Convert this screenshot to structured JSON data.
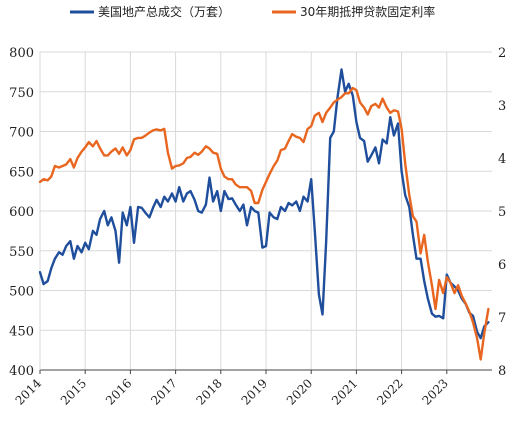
{
  "chart_data": {
    "type": "line",
    "title": "",
    "xlabel": "",
    "ylabel": "",
    "xlim": [
      2014,
      2024
    ],
    "ylim": [
      400,
      800
    ],
    "y2lim": [
      2,
      8
    ],
    "y2_inverted": true,
    "x_ticks": [
      "2014",
      "2015",
      "2016",
      "2017",
      "2018",
      "2019",
      "2020",
      "2021",
      "2022",
      "2023"
    ],
    "y_ticks": [
      "400",
      "450",
      "500",
      "550",
      "600",
      "650",
      "700",
      "750",
      "800"
    ],
    "y2_ticks": [
      "2",
      "3",
      "4",
      "5",
      "6",
      "7",
      "8"
    ],
    "grid": true,
    "legend_position": "top",
    "series": [
      {
        "name": "美国地产总成交（万套）",
        "axis": "left",
        "color": "#1f4e9c",
        "x": [
          2014.0,
          2014.08,
          2014.17,
          2014.25,
          2014.33,
          2014.42,
          2014.5,
          2014.58,
          2014.67,
          2014.75,
          2014.83,
          2014.92,
          2015.0,
          2015.08,
          2015.17,
          2015.25,
          2015.33,
          2015.42,
          2015.5,
          2015.58,
          2015.67,
          2015.75,
          2015.83,
          2015.92,
          2016.0,
          2016.08,
          2016.17,
          2016.25,
          2016.33,
          2016.42,
          2016.5,
          2016.58,
          2016.67,
          2016.75,
          2016.83,
          2016.92,
          2017.0,
          2017.08,
          2017.17,
          2017.25,
          2017.33,
          2017.42,
          2017.5,
          2017.58,
          2017.67,
          2017.75,
          2017.83,
          2017.92,
          2018.0,
          2018.08,
          2018.17,
          2018.25,
          2018.33,
          2018.42,
          2018.5,
          2018.58,
          2018.67,
          2018.75,
          2018.83,
          2018.92,
          2019.0,
          2019.08,
          2019.17,
          2019.25,
          2019.33,
          2019.42,
          2019.5,
          2019.58,
          2019.67,
          2019.75,
          2019.83,
          2019.92,
          2020.0,
          2020.08,
          2020.17,
          2020.25,
          2020.33,
          2020.42,
          2020.5,
          2020.58,
          2020.67,
          2020.75,
          2020.83,
          2020.92,
          2021.0,
          2021.08,
          2021.17,
          2021.25,
          2021.33,
          2021.42,
          2021.5,
          2021.58,
          2021.67,
          2021.75,
          2021.83,
          2021.92,
          2022.0,
          2022.08,
          2022.17,
          2022.25,
          2022.33,
          2022.42,
          2022.5,
          2022.58,
          2022.67,
          2022.75,
          2022.83,
          2022.92,
          2023.0,
          2023.08,
          2023.17,
          2023.25,
          2023.33,
          2023.42,
          2023.5,
          2023.58,
          2023.67,
          2023.75,
          2023.83,
          2023.92
        ],
        "values": [
          523,
          508,
          512,
          528,
          540,
          548,
          545,
          556,
          562,
          540,
          556,
          548,
          560,
          552,
          575,
          570,
          590,
          600,
          582,
          592,
          575,
          535,
          598,
          582,
          605,
          560,
          605,
          604,
          598,
          592,
          604,
          614,
          605,
          618,
          612,
          622,
          612,
          630,
          612,
          622,
          625,
          614,
          600,
          598,
          608,
          642,
          612,
          625,
          600,
          625,
          615,
          616,
          608,
          600,
          608,
          582,
          605,
          600,
          598,
          554,
          556,
          598,
          592,
          590,
          605,
          600,
          610,
          607,
          612,
          600,
          618,
          612,
          640,
          575,
          495,
          470,
          560,
          692,
          700,
          742,
          778,
          750,
          760,
          745,
          712,
          692,
          688,
          662,
          670,
          680,
          660,
          690,
          685,
          718,
          695,
          710,
          650,
          620,
          605,
          570,
          540,
          540,
          512,
          490,
          471,
          467,
          468,
          465,
          520,
          510,
          505,
          500,
          490,
          483,
          472,
          468,
          448,
          440,
          455,
          460
        ]
      },
      {
        "name": "30年期抵押贷款固定利率",
        "axis": "right",
        "color": "#e8661f",
        "x": [
          2014.0,
          2014.08,
          2014.17,
          2014.25,
          2014.33,
          2014.42,
          2014.5,
          2014.58,
          2014.67,
          2014.75,
          2014.83,
          2014.92,
          2015.0,
          2015.08,
          2015.17,
          2015.25,
          2015.33,
          2015.42,
          2015.5,
          2015.58,
          2015.67,
          2015.75,
          2015.83,
          2015.92,
          2016.0,
          2016.08,
          2016.17,
          2016.25,
          2016.33,
          2016.42,
          2016.5,
          2016.58,
          2016.67,
          2016.75,
          2016.83,
          2016.92,
          2017.0,
          2017.08,
          2017.17,
          2017.25,
          2017.33,
          2017.42,
          2017.5,
          2017.58,
          2017.67,
          2017.75,
          2017.83,
          2017.92,
          2018.0,
          2018.08,
          2018.17,
          2018.25,
          2018.33,
          2018.42,
          2018.5,
          2018.58,
          2018.67,
          2018.75,
          2018.83,
          2018.92,
          2019.0,
          2019.08,
          2019.17,
          2019.25,
          2019.33,
          2019.42,
          2019.5,
          2019.58,
          2019.67,
          2019.75,
          2019.83,
          2019.92,
          2020.0,
          2020.08,
          2020.17,
          2020.25,
          2020.33,
          2020.42,
          2020.5,
          2020.58,
          2020.67,
          2020.75,
          2020.83,
          2020.92,
          2021.0,
          2021.08,
          2021.17,
          2021.25,
          2021.33,
          2021.42,
          2021.5,
          2021.58,
          2021.67,
          2021.75,
          2021.83,
          2021.92,
          2022.0,
          2022.08,
          2022.17,
          2022.25,
          2022.33,
          2022.42,
          2022.5,
          2022.58,
          2022.67,
          2022.75,
          2022.83,
          2022.92,
          2023.0,
          2023.08,
          2023.17,
          2023.25,
          2023.33,
          2023.42,
          2023.5,
          2023.58,
          2023.67,
          2023.75,
          2023.83,
          2023.92
        ],
        "values": [
          4.45,
          4.4,
          4.42,
          4.35,
          4.15,
          4.18,
          4.15,
          4.12,
          4.02,
          4.18,
          4.0,
          3.88,
          3.8,
          3.7,
          3.78,
          3.68,
          3.82,
          3.95,
          3.95,
          3.88,
          3.82,
          3.92,
          3.8,
          3.95,
          3.85,
          3.65,
          3.62,
          3.62,
          3.58,
          3.52,
          3.48,
          3.46,
          3.48,
          3.45,
          3.9,
          4.2,
          4.15,
          4.14,
          4.1,
          4.0,
          3.98,
          3.9,
          3.94,
          3.88,
          3.78,
          3.82,
          3.9,
          3.92,
          4.2,
          4.35,
          4.4,
          4.4,
          4.5,
          4.55,
          4.55,
          4.55,
          4.62,
          4.85,
          4.85,
          4.6,
          4.45,
          4.3,
          4.15,
          4.05,
          3.85,
          3.82,
          3.68,
          3.55,
          3.6,
          3.62,
          3.7,
          3.45,
          3.4,
          3.2,
          3.15,
          3.32,
          3.15,
          3.05,
          2.95,
          2.9,
          2.85,
          2.78,
          2.78,
          2.68,
          2.72,
          2.95,
          3.05,
          3.18,
          3.02,
          2.98,
          3.05,
          2.88,
          3.05,
          3.15,
          3.1,
          3.12,
          3.45,
          4.1,
          4.7,
          5.1,
          5.2,
          5.8,
          5.45,
          5.95,
          6.4,
          6.85,
          6.3,
          6.55,
          6.25,
          6.35,
          6.55,
          6.4,
          6.6,
          6.75,
          6.9,
          7.1,
          7.4,
          7.8,
          7.3,
          6.85
        ]
      }
    ]
  }
}
